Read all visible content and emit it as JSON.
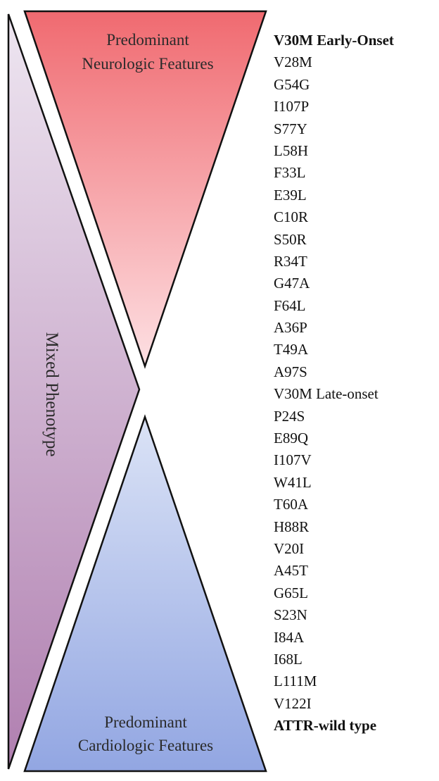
{
  "colors": {
    "neuro_top": "#f06a70",
    "neuro_bottom": "#fde0e3",
    "cardio_top": "#dbe3f6",
    "cardio_bottom": "#92a6e2",
    "mixed_top": "#eee6f1",
    "mixed_bottom": "#b07fb0",
    "outline": "#111111"
  },
  "neuro": {
    "line1": "Predominant",
    "line2": "Neurologic Features"
  },
  "cardio": {
    "line1": "Predominant",
    "line2": "Cardiologic Features"
  },
  "mixed": {
    "label": "Mixed Phenotype"
  },
  "variants": [
    {
      "label": "V30M Early-Onset",
      "bold": true
    },
    {
      "label": "V28M",
      "bold": false
    },
    {
      "label": "G54G",
      "bold": false
    },
    {
      "label": "I107P",
      "bold": false
    },
    {
      "label": "S77Y",
      "bold": false
    },
    {
      "label": "L58H",
      "bold": false
    },
    {
      "label": "F33L",
      "bold": false
    },
    {
      "label": "E39L",
      "bold": false
    },
    {
      "label": "C10R",
      "bold": false
    },
    {
      "label": "S50R",
      "bold": false
    },
    {
      "label": "R34T",
      "bold": false
    },
    {
      "label": "G47A",
      "bold": false
    },
    {
      "label": "F64L",
      "bold": false
    },
    {
      "label": "A36P",
      "bold": false
    },
    {
      "label": "T49A",
      "bold": false
    },
    {
      "label": "A97S",
      "bold": false
    },
    {
      "label": "V30M Late-onset",
      "bold": false
    },
    {
      "label": "P24S",
      "bold": false
    },
    {
      "label": "E89Q",
      "bold": false
    },
    {
      "label": "I107V",
      "bold": false
    },
    {
      "label": "W41L",
      "bold": false
    },
    {
      "label": "T60A",
      "bold": false
    },
    {
      "label": "H88R",
      "bold": false
    },
    {
      "label": "V20I",
      "bold": false
    },
    {
      "label": "A45T",
      "bold": false
    },
    {
      "label": "G65L",
      "bold": false
    },
    {
      "label": "S23N",
      "bold": false
    },
    {
      "label": "I84A",
      "bold": false
    },
    {
      "label": "I68L",
      "bold": false
    },
    {
      "label": "L111M",
      "bold": false
    },
    {
      "label": "V122I",
      "bold": false
    },
    {
      "label": "ATTR-wild type",
      "bold": true
    }
  ]
}
